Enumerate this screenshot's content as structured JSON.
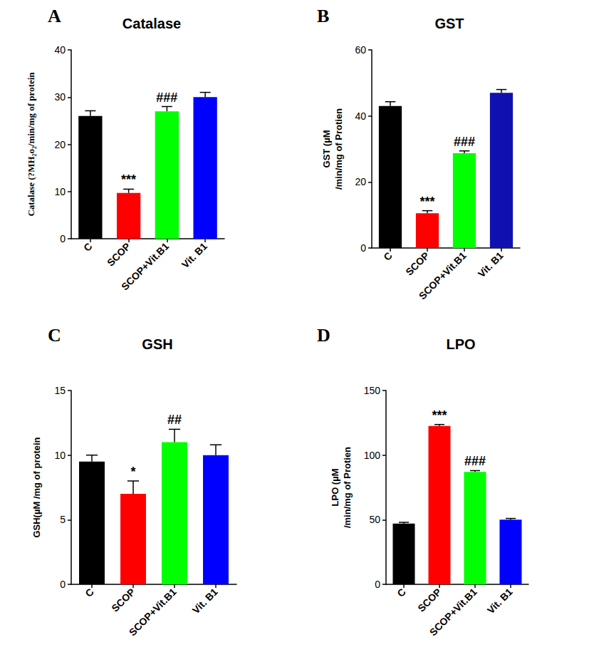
{
  "chart_data": [
    {
      "type": "bar",
      "panel": "A",
      "title": "Catalase",
      "y_label": "Catalase (?MH₂o₂/min/mg of protein",
      "categories": [
        "C",
        "SCOP",
        "SCOP+Vit.B1",
        "Vit. B1"
      ],
      "values": [
        26,
        9.7,
        27,
        30
      ],
      "errors": [
        1.1,
        0.8,
        1.0,
        1.0
      ],
      "colors": [
        "#000000",
        "#ff0000",
        "#00ff00",
        "#0000ff"
      ],
      "ylim": [
        0,
        40
      ],
      "yticks": [
        0,
        10,
        20,
        30,
        40
      ],
      "grid": false,
      "annotations": [
        {
          "category": "SCOP",
          "text": "***"
        },
        {
          "category": "SCOP+Vit.B1",
          "text": "###"
        }
      ]
    },
    {
      "type": "bar",
      "panel": "B",
      "title": "GST",
      "y_label": "GST (µM\n/min/mg of Protien",
      "categories": [
        "C",
        "SCOP",
        "SCOP+Vit.B1",
        "Vit. B1"
      ],
      "values": [
        43,
        10.5,
        28.7,
        47
      ],
      "errors": [
        1.3,
        0.8,
        0.7,
        1.0
      ],
      "colors": [
        "#000000",
        "#ff0000",
        "#00ff00",
        "#1010b0"
      ],
      "ylim": [
        0,
        60
      ],
      "yticks": [
        0,
        20,
        40,
        60
      ],
      "grid": false,
      "annotations": [
        {
          "category": "SCOP",
          "text": "***"
        },
        {
          "category": "SCOP+Vit.B1",
          "text": "###"
        }
      ]
    },
    {
      "type": "bar",
      "panel": "C",
      "title": "GSH",
      "y_label": "GSH(µM /mg of protein",
      "categories": [
        "C",
        "SCOP",
        "SCOP+Vit.B1",
        "Vit. B1"
      ],
      "values": [
        9.5,
        7,
        11,
        10
      ],
      "errors": [
        0.5,
        1.0,
        1.0,
        0.8
      ],
      "colors": [
        "#000000",
        "#ff0000",
        "#00ff00",
        "#0000ff"
      ],
      "ylim": [
        0,
        15
      ],
      "yticks": [
        0,
        5,
        10,
        15
      ],
      "grid": false,
      "annotations": [
        {
          "category": "SCOP",
          "text": "*"
        },
        {
          "category": "SCOP+Vit.B1",
          "text": "##"
        }
      ]
    },
    {
      "type": "bar",
      "panel": "D",
      "title": "LPO",
      "y_label": "LPO (µM\n/min/mg of Protien",
      "categories": [
        "C",
        "SCOP",
        "SCOP+Vit.B1",
        "Vit. B1"
      ],
      "values": [
        47,
        122.5,
        87,
        50
      ],
      "errors": [
        1.0,
        1.2,
        1.0,
        1.0
      ],
      "colors": [
        "#000000",
        "#ff0000",
        "#00ff00",
        "#0000ff"
      ],
      "ylim": [
        0,
        150
      ],
      "yticks": [
        0,
        50,
        100,
        150
      ],
      "grid": false,
      "annotations": [
        {
          "category": "SCOP",
          "text": "***"
        },
        {
          "category": "SCOP+Vit.B1",
          "text": "###"
        }
      ]
    }
  ]
}
